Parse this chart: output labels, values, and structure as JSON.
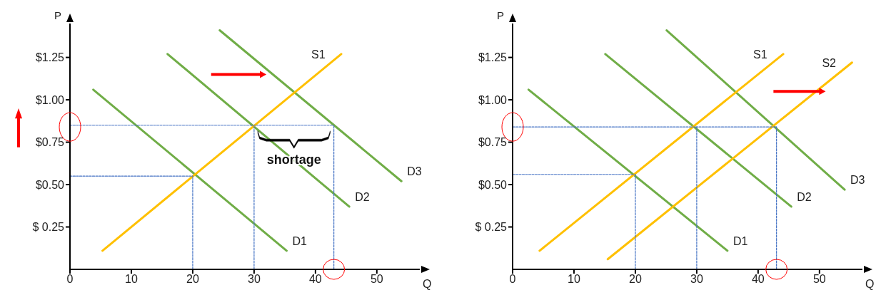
{
  "chart_data": [
    {
      "type": "line",
      "xlabel": "Q",
      "ylabel": "P",
      "xlim": [
        0,
        57
      ],
      "ylim": [
        0,
        1.45
      ],
      "xticks": [
        {
          "value": 0,
          "label": "0"
        },
        10,
        20,
        30,
        40,
        50
      ],
      "yticks": [
        {
          "value": 0.25,
          "label": "$ 0.25"
        },
        {
          "value": 0.5,
          "label": "$0.50"
        },
        {
          "value": 0.75,
          "label": "$0.75"
        },
        {
          "value": 1,
          "label": "$1.00"
        },
        {
          "value": 1.25,
          "label": "$1.25"
        }
      ],
      "series": [
        {
          "type": "line",
          "color": "#4472c4",
          "line_style": "dashed",
          "x": [
            0,
            43
          ],
          "values": [
            0.85,
            0.85
          ]
        },
        {
          "type": "line",
          "color": "#4472c4",
          "line_style": "dashed",
          "x": [
            0,
            20
          ],
          "values": [
            0.55,
            0.55
          ]
        },
        {
          "type": "line",
          "color": "#4472c4",
          "line_style": "dashed",
          "x": [
            20,
            20
          ],
          "values": [
            0,
            0.55
          ]
        },
        {
          "type": "line",
          "color": "#4472c4",
          "line_style": "dashed",
          "x": [
            30,
            30
          ],
          "values": [
            0,
            0.85
          ]
        },
        {
          "type": "line",
          "color": "#4472c4",
          "line_style": "dashed",
          "x": [
            43,
            43
          ],
          "values": [
            0,
            0.85
          ]
        },
        {
          "type": "line",
          "name": "D1",
          "color": "#70ad47",
          "x": [
            3.8,
            35.3
          ],
          "values": [
            1.06,
            0.11
          ]
        },
        {
          "type": "line",
          "name": "D2",
          "color": "#70ad47",
          "x": [
            15.9,
            45.5
          ],
          "values": [
            1.27,
            0.37
          ]
        },
        {
          "type": "line",
          "name": "D3",
          "color": "#70ad47",
          "x": [
            24.4,
            54
          ],
          "values": [
            1.41,
            0.52
          ]
        },
        {
          "type": "line",
          "name": "S1",
          "color": "#ffc000",
          "x": [
            5.3,
            44.2
          ],
          "values": [
            0.11,
            1.27
          ]
        }
      ],
      "annotations": [
        {
          "text": "shortage",
          "x": 36.5,
          "y": 0.62
        }
      ]
    },
    {
      "type": "line",
      "xlabel": "Q",
      "ylabel": "P",
      "xlim": [
        0,
        57
      ],
      "ylim": [
        0,
        1.45
      ],
      "xticks": [
        {
          "value": 0,
          "label": "0"
        },
        10,
        20,
        30,
        40,
        50
      ],
      "yticks": [
        {
          "value": 0.25,
          "label": "$ 0.25"
        },
        {
          "value": 0.5,
          "label": "$0.50"
        },
        {
          "value": 0.75,
          "label": "$0.75"
        },
        {
          "value": 1,
          "label": "$1.00"
        },
        {
          "value": 1.25,
          "label": "$1.25"
        }
      ],
      "series": [
        {
          "type": "line",
          "color": "#4472c4",
          "line_style": "dashed",
          "x": [
            0,
            43
          ],
          "values": [
            0.84,
            0.84
          ]
        },
        {
          "type": "line",
          "color": "#4472c4",
          "line_style": "dashed",
          "x": [
            0,
            20
          ],
          "values": [
            0.56,
            0.56
          ]
        },
        {
          "type": "line",
          "color": "#4472c4",
          "line_style": "dashed",
          "x": [
            20,
            20
          ],
          "values": [
            0,
            0.56
          ]
        },
        {
          "type": "line",
          "color": "#4472c4",
          "line_style": "dashed",
          "x": [
            30,
            30
          ],
          "values": [
            0,
            0.84
          ]
        },
        {
          "type": "line",
          "color": "#4472c4",
          "line_style": "dashed",
          "x": [
            43,
            43
          ],
          "values": [
            0,
            0.84
          ]
        },
        {
          "type": "line",
          "name": "D1",
          "color": "#70ad47",
          "x": [
            2.6,
            35
          ],
          "values": [
            1.06,
            0.11
          ]
        },
        {
          "type": "line",
          "name": "D2",
          "color": "#70ad47",
          "x": [
            15.1,
            45.4
          ],
          "values": [
            1.27,
            0.37
          ]
        },
        {
          "type": "line",
          "name": "D3",
          "color": "#70ad47",
          "x": [
            25.1,
            54.1
          ],
          "values": [
            1.41,
            0.47
          ]
        },
        {
          "type": "line",
          "name": "S1",
          "color": "#ffc000",
          "x": [
            4.4,
            44.1
          ],
          "values": [
            0.11,
            1.27
          ]
        },
        {
          "type": "line",
          "name": "S2",
          "color": "#ffc000",
          "x": [
            15.5,
            55.3
          ],
          "values": [
            0.06,
            1.22
          ]
        }
      ]
    }
  ]
}
